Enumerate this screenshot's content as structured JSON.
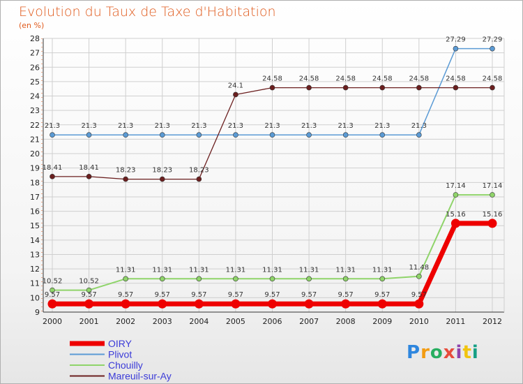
{
  "chart_data": {
    "type": "line",
    "title": "Evolution du Taux de Taxe d'Habitation",
    "subtitle": "(en %)",
    "xlabel": "",
    "ylabel": "",
    "x": [
      2000,
      2001,
      2002,
      2003,
      2004,
      2005,
      2006,
      2007,
      2008,
      2009,
      2010,
      2011,
      2012
    ],
    "ylim": [
      9,
      28
    ],
    "yticks": [
      9,
      10,
      11,
      12,
      13,
      14,
      15,
      16,
      17,
      18,
      19,
      20,
      21,
      22,
      23,
      24,
      25,
      26,
      27,
      28
    ],
    "grid": true,
    "series": [
      {
        "name": "OIRY",
        "color": "#ee0000",
        "values": [
          9.57,
          9.57,
          9.57,
          9.57,
          9.57,
          9.57,
          9.57,
          9.57,
          9.57,
          9.57,
          9.57,
          15.16,
          15.16
        ]
      },
      {
        "name": "Plivot",
        "color": "#5b9bd5",
        "values": [
          21.3,
          21.3,
          21.3,
          21.3,
          21.3,
          21.3,
          21.3,
          21.3,
          21.3,
          21.3,
          21.3,
          27.29,
          27.29
        ]
      },
      {
        "name": "Chouilly",
        "color": "#8fd46a",
        "values": [
          10.52,
          10.52,
          11.31,
          11.31,
          11.31,
          11.31,
          11.31,
          11.31,
          11.31,
          11.31,
          11.48,
          17.14,
          17.14
        ]
      },
      {
        "name": "Mareuil-sur-Ay",
        "color": "#6b1f1f",
        "values": [
          18.41,
          18.41,
          18.23,
          18.23,
          18.23,
          24.1,
          24.58,
          24.58,
          24.58,
          24.58,
          24.58,
          24.58,
          24.58
        ]
      }
    ],
    "legend_position": "bottom-left"
  },
  "brand": {
    "letters": [
      "P",
      "r",
      "o",
      "x",
      "i",
      "t",
      "i"
    ],
    "colors": [
      "#2e86de",
      "#f39c12",
      "#27ae60",
      "#e74c3c",
      "#8e44ad",
      "#f1c40f",
      "#16a085"
    ]
  }
}
